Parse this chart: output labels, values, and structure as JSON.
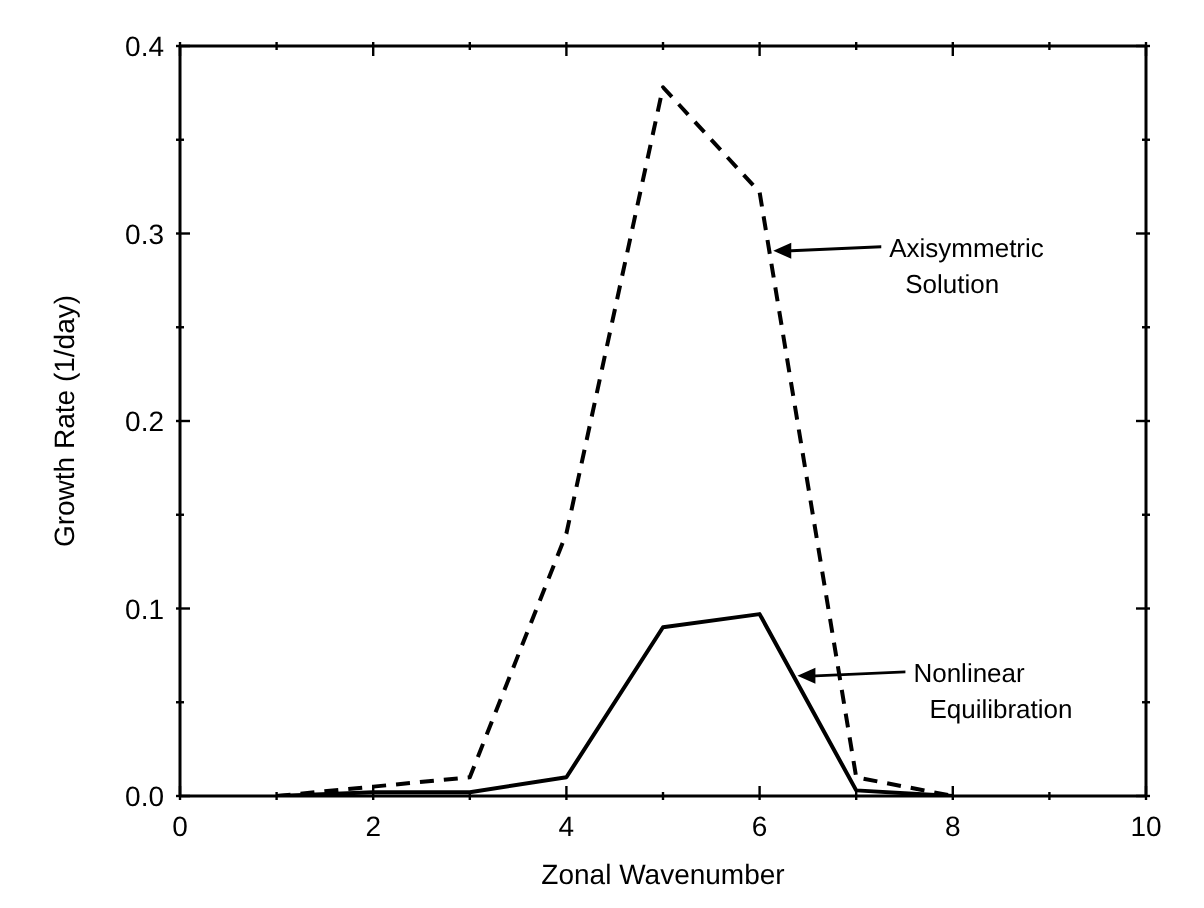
{
  "chart_data": {
    "type": "line",
    "xlabel": "Zonal Wavenumber",
    "ylabel": "Growth Rate (1/day)",
    "x": [
      1,
      2,
      3,
      4,
      5,
      6,
      7,
      8
    ],
    "series": [
      {
        "color": "#000000",
        "line_style": "dashed",
        "values": [
          0,
          0.005,
          0.01,
          0.14,
          0.378,
          0.322,
          0.01,
          0
        ]
      },
      {
        "color": "#000000",
        "line_style": "solid",
        "values": [
          0,
          0.002,
          0.002,
          0.01,
          0.09,
          0.097,
          0.003,
          0
        ]
      }
    ],
    "xlim": [
      0,
      10
    ],
    "xticks": [
      0,
      {
        "value": 1,
        "label": null
      },
      2,
      {
        "value": 3,
        "label": null
      },
      4,
      {
        "value": 5,
        "label": null
      },
      6,
      {
        "value": 7,
        "label": null
      },
      8,
      {
        "value": 9,
        "label": null
      },
      10
    ],
    "ylim": [
      0,
      0.4
    ],
    "yticks": [
      {
        "value": 0,
        "label": "0.0"
      },
      {
        "value": 0.05,
        "label": null
      },
      0.1,
      {
        "value": 0.15,
        "label": null
      },
      0.2,
      {
        "value": 0.25,
        "label": null
      },
      0.3,
      {
        "value": 0.35,
        "label": null
      },
      0.4
    ],
    "annotations": [
      "Axisymmetric Solution",
      "Nonlinear Equilibration"
    ],
    "grid": false,
    "legend": false,
    "marker": "none"
  }
}
